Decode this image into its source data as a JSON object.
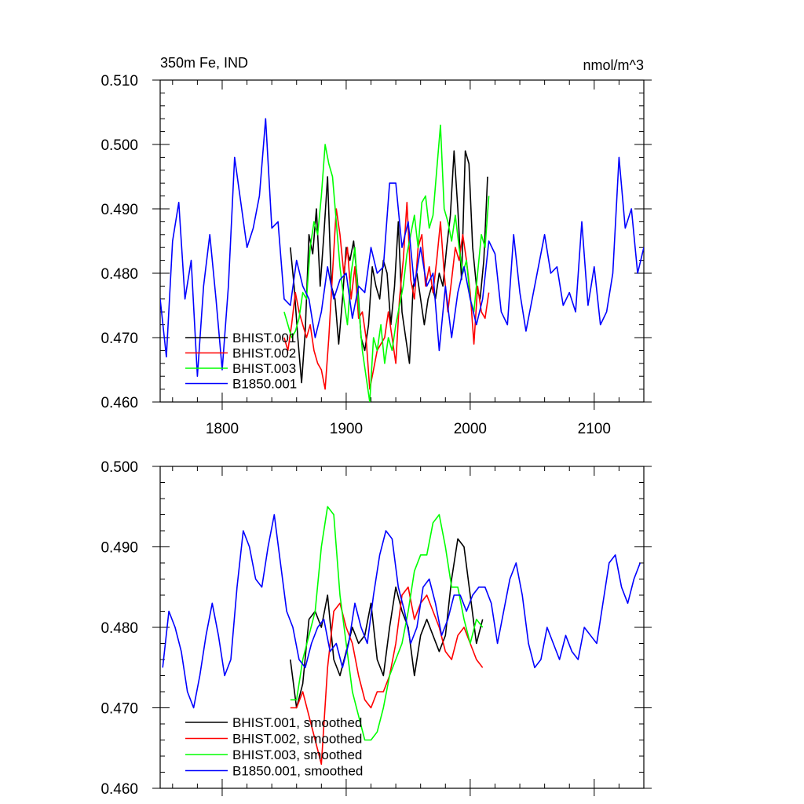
{
  "chart_data": [
    {
      "type": "line",
      "title": "350m Fe, IND",
      "units": "nmol/m^3",
      "xlim": [
        1750,
        2140
      ],
      "ylim": [
        0.46,
        0.51
      ],
      "xticks": [
        "1800",
        "1900",
        "2000",
        "2100"
      ],
      "yticks": [
        "0.460",
        "0.470",
        "0.480",
        "0.490",
        "0.500",
        "0.510"
      ],
      "legend": {
        "position": "bottom-left"
      },
      "series": [
        {
          "name": "BHIST.001",
          "color": "#000000",
          "x": [
            1855,
            1858,
            1861,
            1864,
            1867,
            1870,
            1873,
            1876,
            1879,
            1882,
            1885,
            1888,
            1891,
            1894,
            1897,
            1900,
            1903,
            1906,
            1909,
            1912,
            1915,
            1918,
            1921,
            1924,
            1927,
            1930,
            1933,
            1936,
            1939,
            1942,
            1945,
            1948,
            1951,
            1954,
            1957,
            1960,
            1963,
            1966,
            1969,
            1972,
            1975,
            1978,
            1981,
            1984,
            1987,
            1990,
            1993,
            1996,
            1999,
            2002,
            2005,
            2008,
            2011,
            2014
          ],
          "values": [
            0.484,
            0.478,
            0.47,
            0.463,
            0.471,
            0.486,
            0.483,
            0.49,
            0.478,
            0.486,
            0.495,
            0.478,
            0.476,
            0.469,
            0.476,
            0.484,
            0.482,
            0.485,
            0.479,
            0.47,
            0.468,
            0.472,
            0.481,
            0.478,
            0.476,
            0.482,
            0.48,
            0.472,
            0.478,
            0.488,
            0.474,
            0.47,
            0.466,
            0.478,
            0.48,
            0.476,
            0.472,
            0.476,
            0.478,
            0.476,
            0.48,
            0.478,
            0.484,
            0.489,
            0.499,
            0.49,
            0.479,
            0.499,
            0.497,
            0.484,
            0.478,
            0.476,
            0.482,
            0.495
          ]
        },
        {
          "name": "BHIST.002",
          "color": "#ff0000",
          "x": [
            1850,
            1853,
            1856,
            1859,
            1862,
            1865,
            1868,
            1871,
            1874,
            1877,
            1880,
            1883,
            1886,
            1889,
            1892,
            1895,
            1898,
            1901,
            1904,
            1907,
            1910,
            1913,
            1916,
            1919,
            1922,
            1925,
            1928,
            1931,
            1934,
            1937,
            1940,
            1943,
            1946,
            1949,
            1952,
            1955,
            1958,
            1961,
            1964,
            1967,
            1970,
            1973,
            1976,
            1979,
            1982,
            1985,
            1988,
            1991,
            1994,
            1997,
            2000,
            2003,
            2006,
            2009,
            2012,
            2015
          ],
          "values": [
            0.47,
            0.468,
            0.472,
            0.477,
            0.474,
            0.472,
            0.47,
            0.472,
            0.468,
            0.466,
            0.465,
            0.462,
            0.47,
            0.48,
            0.49,
            0.486,
            0.48,
            0.484,
            0.476,
            0.481,
            0.473,
            0.474,
            0.47,
            0.462,
            0.465,
            0.468,
            0.469,
            0.47,
            0.474,
            0.47,
            0.466,
            0.476,
            0.482,
            0.491,
            0.479,
            0.476,
            0.484,
            0.486,
            0.478,
            0.481,
            0.477,
            0.482,
            0.488,
            0.48,
            0.474,
            0.479,
            0.484,
            0.482,
            0.486,
            0.482,
            0.477,
            0.469,
            0.478,
            0.474,
            0.473,
            0.477
          ]
        },
        {
          "name": "BHIST.003",
          "color": "#00ff00",
          "x": [
            1850,
            1853,
            1856,
            1859,
            1862,
            1865,
            1868,
            1871,
            1874,
            1877,
            1880,
            1883,
            1886,
            1889,
            1892,
            1895,
            1898,
            1901,
            1904,
            1907,
            1910,
            1913,
            1916,
            1919,
            1922,
            1925,
            1928,
            1931,
            1934,
            1937,
            1940,
            1943,
            1946,
            1949,
            1952,
            1955,
            1958,
            1961,
            1964,
            1967,
            1970,
            1973,
            1976,
            1979,
            1982,
            1985,
            1988,
            1991,
            1994,
            1997,
            2000,
            2003,
            2006,
            2009,
            2012,
            2015
          ],
          "values": [
            0.474,
            0.472,
            0.47,
            0.471,
            0.473,
            0.477,
            0.476,
            0.484,
            0.488,
            0.486,
            0.492,
            0.5,
            0.497,
            0.495,
            0.488,
            0.481,
            0.476,
            0.472,
            0.48,
            0.484,
            0.475,
            0.468,
            0.464,
            0.46,
            0.47,
            0.468,
            0.472,
            0.466,
            0.47,
            0.468,
            0.472,
            0.475,
            0.478,
            0.483,
            0.486,
            0.489,
            0.484,
            0.491,
            0.492,
            0.487,
            0.489,
            0.496,
            0.503,
            0.49,
            0.488,
            0.485,
            0.489,
            0.484,
            0.48,
            0.482,
            0.476,
            0.474,
            0.48,
            0.486,
            0.484,
            0.492
          ]
        },
        {
          "name": "B1850.001",
          "color": "#0000ff",
          "x": [
            1750,
            1755,
            1760,
            1765,
            1770,
            1775,
            1780,
            1785,
            1790,
            1795,
            1800,
            1805,
            1810,
            1815,
            1820,
            1825,
            1830,
            1835,
            1840,
            1845,
            1850,
            1855,
            1860,
            1865,
            1870,
            1875,
            1880,
            1885,
            1890,
            1895,
            1900,
            1905,
            1910,
            1915,
            1920,
            1925,
            1930,
            1935,
            1940,
            1945,
            1950,
            1955,
            1960,
            1965,
            1970,
            1975,
            1980,
            1985,
            1990,
            1995,
            2000,
            2005,
            2010,
            2015,
            2020,
            2025,
            2030,
            2035,
            2040,
            2045,
            2050,
            2055,
            2060,
            2065,
            2070,
            2075,
            2080,
            2085,
            2090,
            2095,
            2100,
            2105,
            2110,
            2115,
            2120,
            2125,
            2130,
            2135,
            2140
          ],
          "values": [
            0.476,
            0.467,
            0.485,
            0.491,
            0.476,
            0.482,
            0.464,
            0.478,
            0.486,
            0.476,
            0.465,
            0.478,
            0.498,
            0.491,
            0.484,
            0.487,
            0.492,
            0.504,
            0.487,
            0.488,
            0.476,
            0.475,
            0.482,
            0.478,
            0.476,
            0.47,
            0.474,
            0.481,
            0.476,
            0.479,
            0.48,
            0.473,
            0.478,
            0.477,
            0.484,
            0.48,
            0.481,
            0.494,
            0.494,
            0.484,
            0.488,
            0.478,
            0.484,
            0.478,
            0.48,
            0.468,
            0.478,
            0.47,
            0.477,
            0.481,
            0.476,
            0.472,
            0.476,
            0.485,
            0.483,
            0.474,
            0.472,
            0.486,
            0.477,
            0.471,
            0.476,
            0.481,
            0.486,
            0.48,
            0.481,
            0.475,
            0.477,
            0.474,
            0.488,
            0.475,
            0.481,
            0.472,
            0.474,
            0.48,
            0.498,
            0.487,
            0.49,
            0.48,
            0.484
          ]
        }
      ]
    },
    {
      "type": "line",
      "xlim": [
        1750,
        2140
      ],
      "ylim": [
        0.46,
        0.5
      ],
      "yticks": [
        "0.460",
        "0.470",
        "0.480",
        "0.490",
        "0.500"
      ],
      "legend": {
        "position": "bottom-left"
      },
      "series": [
        {
          "name": "BHIST.001, smoothed",
          "color": "#000000",
          "x": [
            1855,
            1860,
            1865,
            1870,
            1875,
            1880,
            1885,
            1890,
            1895,
            1900,
            1905,
            1910,
            1915,
            1920,
            1925,
            1930,
            1935,
            1940,
            1945,
            1950,
            1955,
            1960,
            1965,
            1970,
            1975,
            1980,
            1985,
            1990,
            1995,
            2000,
            2005,
            2010
          ],
          "values": [
            0.476,
            0.47,
            0.473,
            0.481,
            0.482,
            0.48,
            0.484,
            0.476,
            0.474,
            0.477,
            0.48,
            0.478,
            0.479,
            0.483,
            0.476,
            0.474,
            0.48,
            0.485,
            0.482,
            0.48,
            0.474,
            0.479,
            0.481,
            0.479,
            0.477,
            0.479,
            0.486,
            0.491,
            0.49,
            0.484,
            0.478,
            0.481
          ]
        },
        {
          "name": "BHIST.002, smoothed",
          "color": "#ff0000",
          "x": [
            1855,
            1860,
            1865,
            1870,
            1875,
            1880,
            1885,
            1890,
            1895,
            1900,
            1905,
            1910,
            1915,
            1920,
            1925,
            1930,
            1935,
            1940,
            1945,
            1950,
            1955,
            1960,
            1965,
            1970,
            1975,
            1980,
            1985,
            1990,
            1995,
            2000,
            2005,
            2010
          ],
          "values": [
            0.47,
            0.47,
            0.472,
            0.469,
            0.466,
            0.463,
            0.475,
            0.482,
            0.483,
            0.48,
            0.478,
            0.474,
            0.471,
            0.47,
            0.472,
            0.472,
            0.474,
            0.478,
            0.484,
            0.485,
            0.481,
            0.483,
            0.484,
            0.482,
            0.48,
            0.477,
            0.476,
            0.479,
            0.48,
            0.478,
            0.476,
            0.475
          ]
        },
        {
          "name": "BHIST.003, smoothed",
          "color": "#00ff00",
          "x": [
            1855,
            1860,
            1865,
            1870,
            1875,
            1880,
            1885,
            1890,
            1895,
            1900,
            1905,
            1910,
            1915,
            1920,
            1925,
            1930,
            1935,
            1940,
            1945,
            1950,
            1955,
            1960,
            1965,
            1970,
            1975,
            1980,
            1985,
            1990,
            1995,
            2000,
            2005,
            2010
          ],
          "values": [
            0.471,
            0.471,
            0.476,
            0.479,
            0.482,
            0.49,
            0.495,
            0.494,
            0.484,
            0.478,
            0.472,
            0.469,
            0.466,
            0.466,
            0.467,
            0.47,
            0.474,
            0.476,
            0.478,
            0.482,
            0.487,
            0.489,
            0.489,
            0.493,
            0.494,
            0.49,
            0.485,
            0.485,
            0.481,
            0.478,
            0.481,
            0.48
          ]
        },
        {
          "name": "B1850.001, smoothed",
          "color": "#0000ff",
          "x": [
            1752,
            1757,
            1762,
            1767,
            1772,
            1777,
            1782,
            1787,
            1792,
            1797,
            1802,
            1807,
            1812,
            1817,
            1822,
            1827,
            1832,
            1837,
            1842,
            1847,
            1852,
            1857,
            1862,
            1867,
            1872,
            1877,
            1882,
            1887,
            1892,
            1897,
            1902,
            1907,
            1912,
            1917,
            1922,
            1927,
            1932,
            1937,
            1942,
            1947,
            1952,
            1957,
            1962,
            1967,
            1972,
            1977,
            1982,
            1987,
            1992,
            1997,
            2002,
            2007,
            2012,
            2017,
            2022,
            2027,
            2032,
            2037,
            2042,
            2047,
            2052,
            2057,
            2062,
            2067,
            2072,
            2077,
            2082,
            2087,
            2092,
            2097,
            2102,
            2107,
            2112,
            2117,
            2122,
            2127,
            2132,
            2137
          ],
          "values": [
            0.475,
            0.482,
            0.48,
            0.477,
            0.472,
            0.47,
            0.474,
            0.479,
            0.483,
            0.479,
            0.474,
            0.476,
            0.485,
            0.492,
            0.49,
            0.486,
            0.485,
            0.49,
            0.494,
            0.488,
            0.482,
            0.48,
            0.476,
            0.475,
            0.478,
            0.48,
            0.481,
            0.477,
            0.478,
            0.475,
            0.478,
            0.483,
            0.48,
            0.478,
            0.484,
            0.489,
            0.492,
            0.491,
            0.485,
            0.482,
            0.478,
            0.48,
            0.485,
            0.486,
            0.483,
            0.479,
            0.481,
            0.484,
            0.484,
            0.482,
            0.484,
            0.485,
            0.485,
            0.483,
            0.478,
            0.482,
            0.486,
            0.488,
            0.484,
            0.478,
            0.475,
            0.476,
            0.48,
            0.478,
            0.476,
            0.479,
            0.477,
            0.476,
            0.48,
            0.479,
            0.478,
            0.483,
            0.488,
            0.489,
            0.485,
            0.483,
            0.486,
            0.488
          ]
        }
      ]
    }
  ]
}
